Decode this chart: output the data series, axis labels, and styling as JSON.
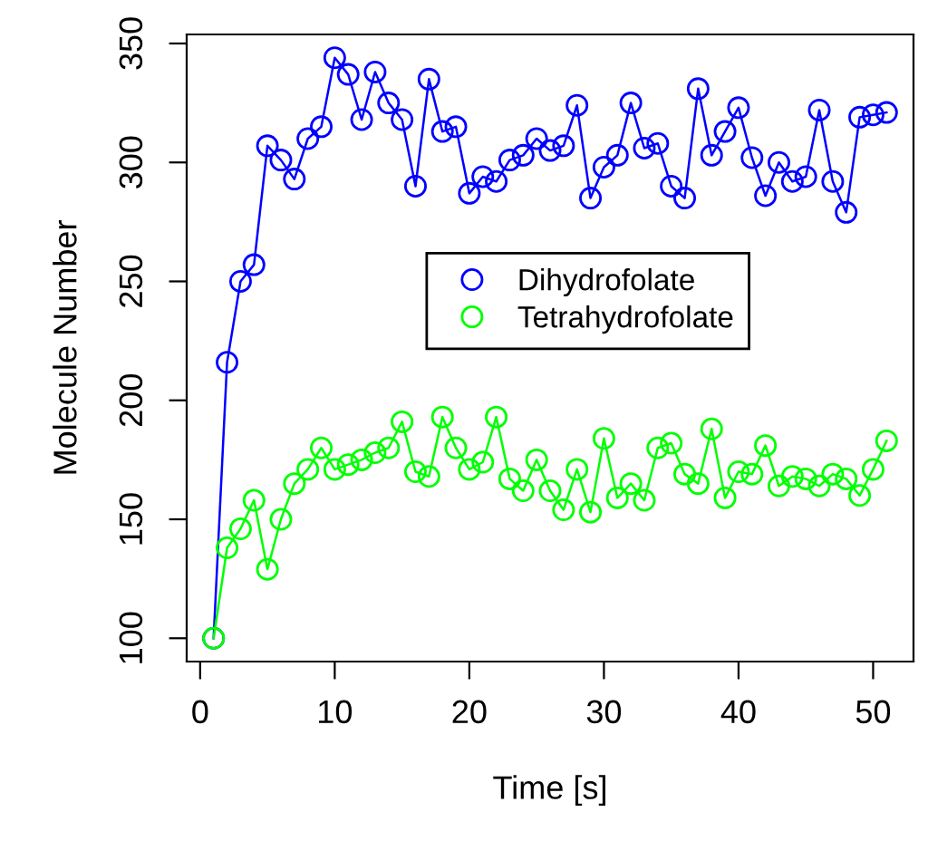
{
  "chart_data": {
    "type": "line",
    "xlabel": "Time [s]",
    "ylabel": "Molecule Number",
    "x": [
      1,
      2,
      3,
      4,
      5,
      6,
      7,
      8,
      9,
      10,
      11,
      12,
      13,
      14,
      15,
      16,
      17,
      18,
      19,
      20,
      21,
      22,
      23,
      24,
      25,
      26,
      27,
      28,
      29,
      30,
      31,
      32,
      33,
      34,
      35,
      36,
      37,
      38,
      39,
      40,
      41,
      42,
      43,
      44,
      45,
      46,
      47,
      48,
      49,
      50,
      51
    ],
    "series": [
      {
        "name": "Dihydrofolate",
        "color": "#0000ff",
        "values": [
          100,
          216,
          250,
          257,
          307,
          301,
          293,
          310,
          315,
          344,
          337,
          318,
          338,
          325,
          318,
          290,
          335,
          313,
          315,
          287,
          294,
          292,
          301,
          303,
          310,
          305,
          307,
          324,
          285,
          298,
          303,
          325,
          306,
          308,
          290,
          285,
          331,
          303,
          313,
          323,
          302,
          286,
          300,
          292,
          294,
          322,
          292,
          279,
          319,
          320,
          321
        ]
      },
      {
        "name": "Tetrahydrofolate",
        "color": "#00ff00",
        "values": [
          100,
          138,
          146,
          158,
          129,
          150,
          165,
          171,
          180,
          171,
          173,
          175,
          178,
          180,
          191,
          170,
          168,
          193,
          180,
          171,
          174,
          193,
          167,
          162,
          175,
          162,
          154,
          171,
          153,
          184,
          159,
          165,
          158,
          180,
          182,
          169,
          165,
          188,
          159,
          170,
          169,
          181,
          164,
          168,
          167,
          164,
          169,
          167,
          160,
          171,
          183
        ]
      }
    ],
    "xlim": [
      -1,
      53
    ],
    "ylim": [
      90.2,
      353.8
    ],
    "xticks": [
      0,
      10,
      20,
      30,
      40,
      50
    ],
    "yticks": [
      100,
      150,
      200,
      250,
      300,
      350
    ],
    "marker": "circle",
    "line_style": "solid",
    "grid": false,
    "legend": "center"
  }
}
